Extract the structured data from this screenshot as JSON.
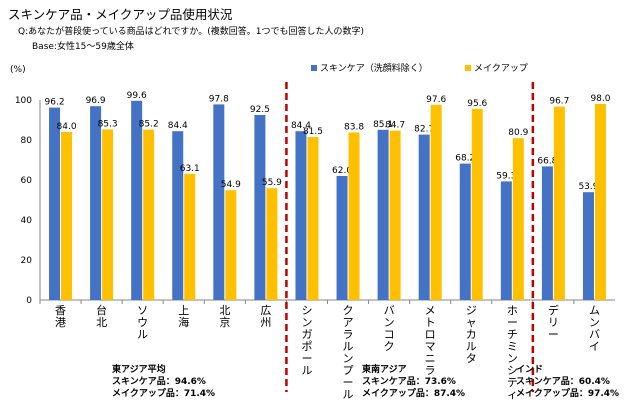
{
  "header": {
    "title": "スキンケア品・メイクアップ品使用状況",
    "question": "Q:あなたが普段使っている商品はどれですか。(複数回答。1つでも回答した人の数字)",
    "base": "Base:女性15～59歳全体"
  },
  "chart_data": {
    "type": "bar",
    "y_unit_label": "(%)",
    "ylim": [
      0,
      100
    ],
    "yticks": [
      0,
      20,
      40,
      60,
      80,
      100
    ],
    "categories": [
      "香港",
      "台北",
      "ソウル",
      "上海",
      "北京",
      "広州",
      "シンガポール",
      "クアラルンプール",
      "バンコク",
      "メトロマニラ",
      "ジャカルタ",
      "ホーチミンシティ",
      "デリー",
      "ムンバイ"
    ],
    "series": [
      {
        "name": "スキンケア（洗顔料除く）",
        "color": "#4472c4",
        "values": [
          96.2,
          96.9,
          99.6,
          84.4,
          97.8,
          92.5,
          84.4,
          62.0,
          85.1,
          82.7,
          68.2,
          59.3,
          66.8,
          53.9
        ],
        "labels": [
          "96.2",
          "96.9",
          "99.6",
          "84.4",
          "97.8",
          "92.5",
          "84.4",
          "62.0",
          "85.1",
          "82.7",
          "68.2",
          "59.3",
          "66.8",
          "53.9"
        ]
      },
      {
        "name": "メイクアップ",
        "color": "#ffc000",
        "values": [
          84.0,
          85.3,
          85.2,
          63.1,
          54.9,
          55.9,
          81.5,
          83.8,
          84.7,
          97.6,
          95.6,
          80.9,
          96.7,
          98.0
        ],
        "labels": [
          "84.0",
          "85.3",
          "85.2",
          "63.1",
          "54.9",
          "55.9",
          "81.5",
          "83.8",
          "84.7",
          "97.6",
          "95.6",
          "80.9",
          "96.7",
          "98.0"
        ]
      }
    ],
    "divider_after": [
      5,
      11
    ],
    "divider_color": "#c00000",
    "region_summaries": [
      {
        "region": "東アジア平均",
        "skincare": "スキンケア品：94.6%",
        "makeup": "メイクアップ品：71.4%"
      },
      {
        "region": "東南アジア",
        "skincare": "スキンケア品：73.6%",
        "makeup": "メイクアップ品：87.4%"
      },
      {
        "region": "インド",
        "skincare": "スキンケア品：60.4%",
        "makeup": "メイクアップ品：97.4%"
      }
    ]
  }
}
